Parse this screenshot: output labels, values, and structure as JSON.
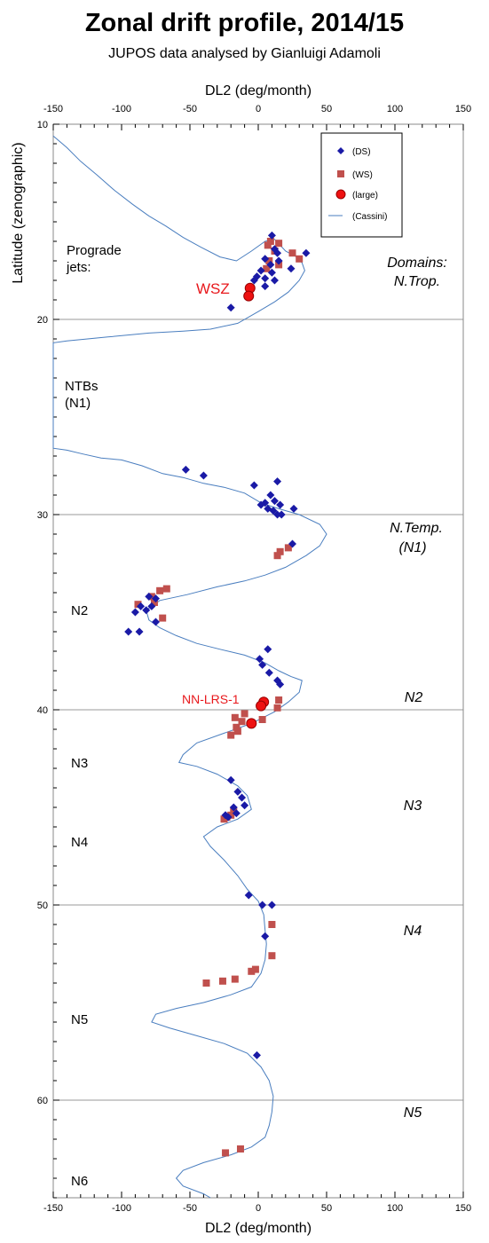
{
  "chart_data": {
    "type": "scatter",
    "title": "Zonal drift profile, 2014/15",
    "subtitle": "JUPOS data analysed by Gianluigi Adamoli",
    "xlabel_top": "DL2 (deg/month)",
    "xlabel_bottom": "DL2 (deg/month)",
    "ylabel": "Latitude (zenographic)",
    "xlim": [
      -150,
      150
    ],
    "ylim": [
      10,
      65
    ],
    "x_ticks": [
      -150,
      -100,
      -50,
      0,
      50,
      100,
      150
    ],
    "x_tick_labels": [
      "-150",
      "-100",
      "-50",
      "0",
      "50",
      "100",
      "150"
    ],
    "y_ticks": [
      10,
      20,
      30,
      40,
      50,
      60
    ],
    "y_tick_labels": [
      "10",
      "20",
      "30",
      "40",
      "50",
      "60"
    ],
    "hlines": [
      20,
      30,
      40,
      50,
      60
    ],
    "legend": {
      "position": "top-right",
      "entries": [
        {
          "label": "(DS)",
          "marker": "diamond",
          "color": "#1a1aa6"
        },
        {
          "label": "(WS)",
          "marker": "square",
          "color": "#c0504d"
        },
        {
          "label": "(large)",
          "marker": "circle",
          "color": "#ee1111"
        },
        {
          "label": "(Cassini)",
          "marker": "line",
          "color": "#4a7ebf"
        }
      ]
    },
    "colors": {
      "ds": "#1a1aa6",
      "ws": "#c0504d",
      "large": "#ee1111",
      "cassini": "#4a7ebf"
    },
    "cassini": [
      [
        -150,
        10.6
      ],
      [
        -140,
        11.2
      ],
      [
        -130,
        11.9
      ],
      [
        -118,
        12.6
      ],
      [
        -105,
        13.4
      ],
      [
        -92,
        14.1
      ],
      [
        -80,
        14.7
      ],
      [
        -68,
        15.2
      ],
      [
        -55,
        15.8
      ],
      [
        -42,
        16.3
      ],
      [
        -28,
        16.8
      ],
      [
        -16,
        17.0
      ],
      [
        -5,
        16.5
      ],
      [
        5,
        16.0
      ],
      [
        12,
        15.9
      ],
      [
        20,
        16.5
      ],
      [
        28,
        16.8
      ],
      [
        32,
        17.1
      ],
      [
        34,
        17.5
      ],
      [
        30,
        18.0
      ],
      [
        22,
        18.6
      ],
      [
        12,
        19.1
      ],
      [
        0,
        19.6
      ],
      [
        -15,
        20.2
      ],
      [
        -35,
        20.5
      ],
      [
        -55,
        20.6
      ],
      [
        -80,
        20.7
      ],
      [
        -110,
        20.9
      ],
      [
        -140,
        21.1
      ],
      [
        -150,
        21.2
      ],
      [
        -150,
        26.6
      ],
      [
        -140,
        26.7
      ],
      [
        -128,
        26.9
      ],
      [
        -115,
        27.1
      ],
      [
        -100,
        27.2
      ],
      [
        -85,
        27.5
      ],
      [
        -70,
        27.9
      ],
      [
        -55,
        28.1
      ],
      [
        -40,
        28.4
      ],
      [
        -25,
        28.6
      ],
      [
        -10,
        28.9
      ],
      [
        2,
        29.4
      ],
      [
        15,
        29.7
      ],
      [
        30,
        30.0
      ],
      [
        45,
        30.5
      ],
      [
        50,
        31.0
      ],
      [
        45,
        31.6
      ],
      [
        35,
        32.1
      ],
      [
        20,
        32.7
      ],
      [
        5,
        33.1
      ],
      [
        -10,
        33.4
      ],
      [
        -30,
        33.7
      ],
      [
        -52,
        34.1
      ],
      [
        -72,
        34.4
      ],
      [
        -82,
        34.9
      ],
      [
        -80,
        35.4
      ],
      [
        -72,
        35.8
      ],
      [
        -60,
        36.2
      ],
      [
        -45,
        36.6
      ],
      [
        -28,
        36.9
      ],
      [
        -10,
        37.2
      ],
      [
        5,
        37.6
      ],
      [
        15,
        38.0
      ],
      [
        24,
        38.3
      ],
      [
        32,
        38.5
      ],
      [
        30,
        39.1
      ],
      [
        22,
        39.6
      ],
      [
        12,
        40.1
      ],
      [
        -5,
        40.7
      ],
      [
        -25,
        41.2
      ],
      [
        -45,
        41.7
      ],
      [
        -55,
        42.3
      ],
      [
        -58,
        42.7
      ],
      [
        -45,
        42.9
      ],
      [
        -30,
        43.3
      ],
      [
        -15,
        43.9
      ],
      [
        -8,
        44.4
      ],
      [
        -5,
        45.1
      ],
      [
        -15,
        45.6
      ],
      [
        -30,
        46.0
      ],
      [
        -40,
        46.5
      ],
      [
        -35,
        47.0
      ],
      [
        -25,
        47.7
      ],
      [
        -15,
        48.5
      ],
      [
        -8,
        49.2
      ],
      [
        0,
        49.8
      ],
      [
        4,
        50.5
      ],
      [
        5,
        51.3
      ],
      [
        6,
        52.0
      ],
      [
        5,
        52.8
      ],
      [
        2,
        53.5
      ],
      [
        -5,
        54.2
      ],
      [
        -20,
        54.6
      ],
      [
        -40,
        55.0
      ],
      [
        -60,
        55.3
      ],
      [
        -75,
        55.6
      ],
      [
        -78,
        56.0
      ],
      [
        -65,
        56.3
      ],
      [
        -45,
        56.7
      ],
      [
        -25,
        57.1
      ],
      [
        -8,
        57.6
      ],
      [
        2,
        58.3
      ],
      [
        8,
        59.0
      ],
      [
        11,
        59.8
      ],
      [
        10,
        60.6
      ],
      [
        8,
        61.3
      ],
      [
        5,
        61.9
      ],
      [
        -5,
        62.4
      ],
      [
        -20,
        62.8
      ],
      [
        -40,
        63.2
      ],
      [
        -55,
        63.6
      ],
      [
        -60,
        64.0
      ],
      [
        -55,
        64.4
      ],
      [
        -40,
        64.8
      ],
      [
        -35,
        65.0
      ]
    ],
    "ds": [
      [
        10,
        15.7
      ],
      [
        12,
        16.4
      ],
      [
        14,
        16.6
      ],
      [
        35,
        16.6
      ],
      [
        5,
        16.9
      ],
      [
        15,
        17.0
      ],
      [
        9,
        17.2
      ],
      [
        2,
        17.5
      ],
      [
        24,
        17.4
      ],
      [
        10,
        17.6
      ],
      [
        -1,
        17.8
      ],
      [
        5,
        17.9
      ],
      [
        12,
        18.0
      ],
      [
        -3,
        18.0
      ],
      [
        5,
        18.3
      ],
      [
        -20,
        19.4
      ],
      [
        -53,
        27.7
      ],
      [
        -40,
        28.0
      ],
      [
        14,
        28.3
      ],
      [
        -3,
        28.5
      ],
      [
        9,
        29.0
      ],
      [
        12,
        29.3
      ],
      [
        5,
        29.4
      ],
      [
        16,
        29.5
      ],
      [
        2,
        29.5
      ],
      [
        7,
        29.7
      ],
      [
        11,
        29.8
      ],
      [
        17,
        30.0
      ],
      [
        26,
        29.7
      ],
      [
        14,
        30.0
      ],
      [
        25,
        31.5
      ],
      [
        -80,
        34.2
      ],
      [
        -75,
        34.3
      ],
      [
        -78,
        34.7
      ],
      [
        -86,
        34.7
      ],
      [
        -82,
        34.9
      ],
      [
        -90,
        35.0
      ],
      [
        -75,
        35.5
      ],
      [
        -95,
        36.0
      ],
      [
        -87,
        36.0
      ],
      [
        7,
        36.9
      ],
      [
        1,
        37.4
      ],
      [
        3,
        37.7
      ],
      [
        8,
        38.1
      ],
      [
        14,
        38.5
      ],
      [
        16,
        38.7
      ],
      [
        -20,
        43.6
      ],
      [
        -15,
        44.2
      ],
      [
        -12,
        44.5
      ],
      [
        -10,
        44.9
      ],
      [
        -18,
        45.0
      ],
      [
        -16,
        45.3
      ],
      [
        -24,
        45.4
      ],
      [
        -22,
        45.5
      ],
      [
        -7,
        49.5
      ],
      [
        3,
        50.0
      ],
      [
        10,
        50.0
      ],
      [
        5,
        51.6
      ],
      [
        -1,
        57.7
      ]
    ],
    "ws": [
      [
        9,
        16.0
      ],
      [
        15,
        16.1
      ],
      [
        7,
        16.2
      ],
      [
        12,
        16.5
      ],
      [
        25,
        16.6
      ],
      [
        30,
        16.9
      ],
      [
        8,
        17.0
      ],
      [
        15,
        17.2
      ],
      [
        6,
        17.4
      ],
      [
        22,
        31.7
      ],
      [
        16,
        31.9
      ],
      [
        14,
        32.1
      ],
      [
        -67,
        33.8
      ],
      [
        -72,
        33.9
      ],
      [
        -78,
        34.2
      ],
      [
        -76,
        34.5
      ],
      [
        -88,
        34.6
      ],
      [
        -70,
        35.3
      ],
      [
        15,
        39.5
      ],
      [
        14,
        39.9
      ],
      [
        -10,
        40.2
      ],
      [
        -17,
        40.4
      ],
      [
        3,
        40.5
      ],
      [
        -12,
        40.6
      ],
      [
        -16,
        40.9
      ],
      [
        -20,
        41.3
      ],
      [
        -15,
        41.1
      ],
      [
        -18,
        45.2
      ],
      [
        -20,
        45.4
      ],
      [
        -23,
        45.5
      ],
      [
        -25,
        45.6
      ],
      [
        10,
        51.0
      ],
      [
        10,
        52.6
      ],
      [
        -2,
        53.3
      ],
      [
        -5,
        53.4
      ],
      [
        -17,
        53.8
      ],
      [
        -26,
        53.9
      ],
      [
        -38,
        54.0
      ],
      [
        -24,
        62.7
      ],
      [
        -13,
        62.5
      ]
    ],
    "large": [
      [
        -6,
        18.4
      ],
      [
        -7,
        18.8
      ],
      [
        4,
        39.6
      ],
      [
        2,
        39.8
      ],
      [
        -5,
        40.7
      ]
    ],
    "annotations": {
      "prograde": [
        "Prograde",
        "jets:"
      ],
      "wsz": "WSZ",
      "ntbs": [
        "NTBs",
        "(N1)"
      ],
      "domains": [
        "Domains:",
        "N.Trop."
      ],
      "n_temp": [
        "N.Temp.",
        "(N1)"
      ],
      "n2_left": "N2",
      "nn_lrs": "NN-LRS-1",
      "n2_right": "N2",
      "n3_left": "N3",
      "n3_right": "N3",
      "n4_left": "N4",
      "n4_right": "N4",
      "n5_left": "N5",
      "n5_right": "N5",
      "n6_left": "N6"
    }
  }
}
